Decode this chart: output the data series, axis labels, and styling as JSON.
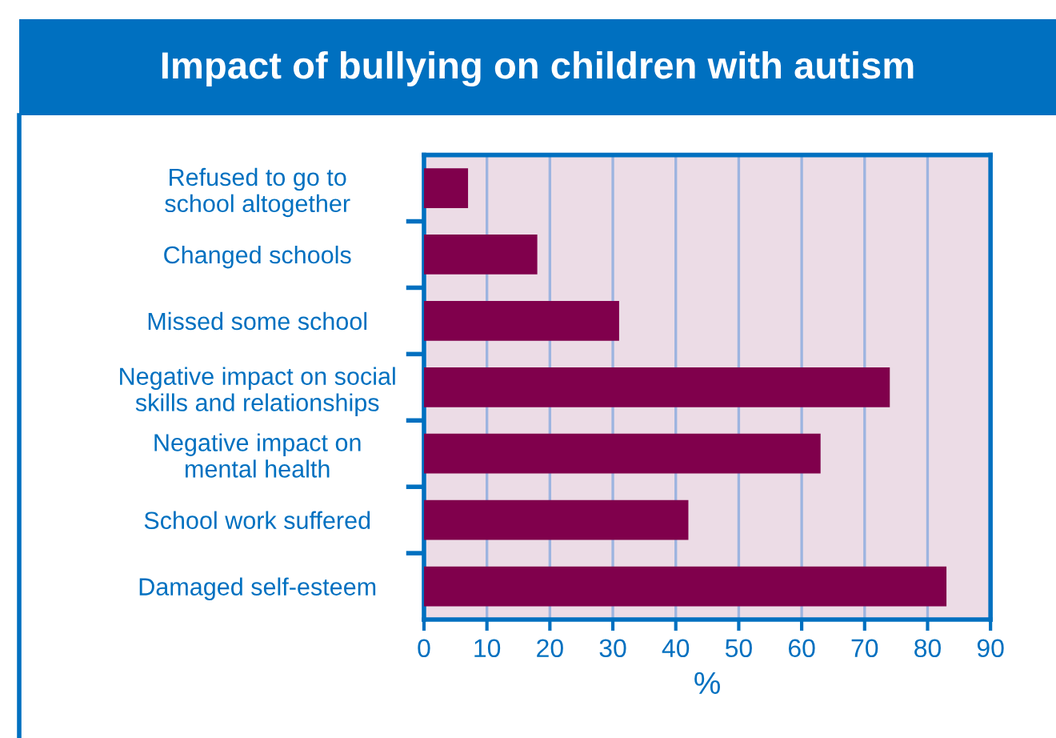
{
  "chart_data": {
    "type": "bar",
    "orientation": "horizontal",
    "title": "Impact of bullying on children with autism",
    "xlabel": "%",
    "categories": [
      "Refused to go to\nschool altogether",
      "Changed schools",
      "Missed some school",
      "Negative impact on social\nskills and relationships",
      "Negative impact on\nmental health",
      "School work suffered",
      "Damaged self-esteem"
    ],
    "values": [
      7,
      18,
      31,
      74,
      63,
      42,
      83
    ],
    "color": "#80004c",
    "xlim": [
      0,
      90
    ],
    "xticks": [
      0,
      10,
      20,
      30,
      40,
      50,
      60,
      70,
      80,
      90
    ],
    "grid": "x",
    "legend": false
  }
}
